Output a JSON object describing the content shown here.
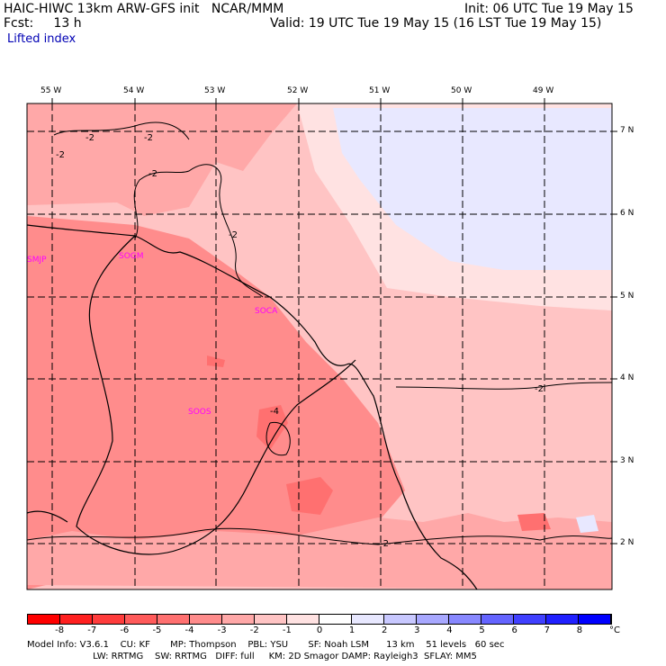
{
  "header": {
    "model_line": "HAIC-HIWC 13km ARW-GFS init   NCAR/MMM",
    "fcst_line": "Fcst:     13 h",
    "variable": "Lifted index",
    "init_line": "Init: 06 UTC Tue 19 May 15",
    "valid_line": "Valid: 19 UTC Tue 19 May 15 (16 LST Tue 19 May 15)"
  },
  "map": {
    "lon_labels": [
      "55 W",
      "54 W",
      "53 W",
      "52 W",
      "51 W",
      "50 W",
      "49 W"
    ],
    "lat_labels": [
      "7 N",
      "6 N",
      "5 N",
      "4 N",
      "3 N",
      "2 N"
    ],
    "contour_labels": [
      "-2",
      "-2",
      "-2",
      "-2",
      "-2",
      "-2",
      "-2",
      "-4",
      "-2"
    ],
    "stations": [
      "SMJP",
      "SOGM",
      "SOCA",
      "SOOS"
    ]
  },
  "colorbar": {
    "labels": [
      "-8",
      "-7",
      "-6",
      "-5",
      "-4",
      "-3",
      "-2",
      "-1",
      "0",
      "1",
      "2",
      "3",
      "4",
      "5",
      "6",
      "7",
      "8"
    ],
    "unit": "°C",
    "colors": [
      "#ff0000",
      "#ff2020",
      "#ff3c3c",
      "#ff5a5a",
      "#ff7070",
      "#ff8c8c",
      "#ffa8a8",
      "#ffc4c4",
      "#ffe2e2",
      "#ffffff",
      "#e8e8ff",
      "#c8c8ff",
      "#a8a8ff",
      "#8888ff",
      "#6464ff",
      "#4040ff",
      "#2020ff",
      "#0000ff"
    ]
  },
  "footer": {
    "line1": "Model Info: V3.6.1    CU: KF       MP: Thompson    PBL: YSU       SF: Noah LSM      13 km    51 levels   60 sec",
    "line2": "                       LW: RRTMG    SW: RRTMG   DIFF: full     KM: 2D Smagor DAMP: Rayleigh3  SFLAY: MM5"
  }
}
